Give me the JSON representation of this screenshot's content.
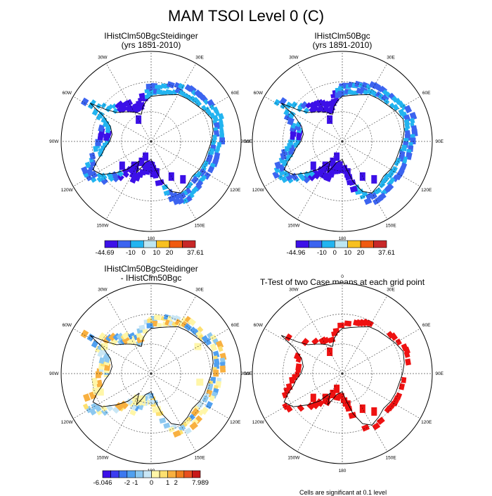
{
  "title": "MAM TSOI Level 0 (C)",
  "panels": [
    {
      "title_line1": "IHistClm50BgcSteidinger",
      "title_line2": "(yrs 1851-2010)"
    },
    {
      "title_line1": "IHistClm50Bgc",
      "title_line2": "(yrs 1851-2010)"
    },
    {
      "title_line1": "IHistClm50BgcSteidinger",
      "title_line2": "- IHistClm50Bgc"
    },
    {
      "title_line1": "T-Test of two Case means at each grid point",
      "title_line2": ""
    }
  ],
  "longitude_labels": [
    "0",
    "30E",
    "60E",
    "90E",
    "120E",
    "150E",
    "180",
    "150W",
    "120W",
    "90W",
    "60W",
    "30W"
  ],
  "colorbars": [
    {
      "colors": [
        "#3c10e8",
        "#3c64f0",
        "#22b4f0",
        "#bde6f2",
        "#f8c020",
        "#f05a10",
        "#c82828"
      ],
      "labels": [
        "-44.69",
        "-10",
        "0",
        "10",
        "20",
        "37.61"
      ]
    },
    {
      "colors": [
        "#3c10e8",
        "#3c64f0",
        "#22b4f0",
        "#bde6f2",
        "#f8c020",
        "#f05a10",
        "#c82828"
      ],
      "labels": [
        "-44.96",
        "-10",
        "0",
        "10",
        "20",
        "37.61"
      ]
    },
    {
      "colors": [
        "#3c10e8",
        "#3c3cf0",
        "#3c78f0",
        "#50a0f0",
        "#8cc8f0",
        "#c8e6f5",
        "#fff6a8",
        "#fde070",
        "#f8b040",
        "#f08020",
        "#e85020",
        "#c81818"
      ],
      "labels": [
        "-6.046",
        "-2",
        "-1",
        "0",
        "1",
        "2",
        "7.989"
      ]
    }
  ],
  "footer_text": "Cells are significant at 0.1 level",
  "colors": {
    "ttest": "#ee1111",
    "mid_cyan": "#22b4f0",
    "blue": "#3c64f0",
    "violet": "#3c10e8",
    "diff_yellow": "#fff6a8"
  },
  "chart_data": [
    {
      "type": "heatmap",
      "projection": "polar stereographic (south pole)",
      "title": "IHistClm50BgcSteidinger (yrs 1851-2010)",
      "colorbar_ticks": [
        "-44.69",
        "-10",
        "0",
        "10",
        "20",
        "37.61"
      ],
      "dominant_range": "-44.69 to 0 (blue / cyan)"
    },
    {
      "type": "heatmap",
      "projection": "polar stereographic (south pole)",
      "title": "IHistClm50Bgc (yrs 1851-2010)",
      "colorbar_ticks": [
        "-44.96",
        "-10",
        "0",
        "10",
        "20",
        "37.61"
      ],
      "dominant_range": "-44.96 to 0 (blue / cyan)"
    },
    {
      "type": "heatmap",
      "projection": "polar stereographic (south pole)",
      "title": "IHistClm50BgcSteidinger - IHistClm50Bgc",
      "colorbar_ticks": [
        "-6.046",
        "-2",
        "-1",
        "0",
        "1",
        "2",
        "7.989"
      ],
      "dominant_range": "0 to 1 (pale yellow) with scattered negative cells"
    },
    {
      "type": "heatmap",
      "projection": "polar stereographic (south pole)",
      "title": "T-Test of two Case means at each grid point",
      "legend": "Cells are significant at 0.1 level"
    }
  ]
}
